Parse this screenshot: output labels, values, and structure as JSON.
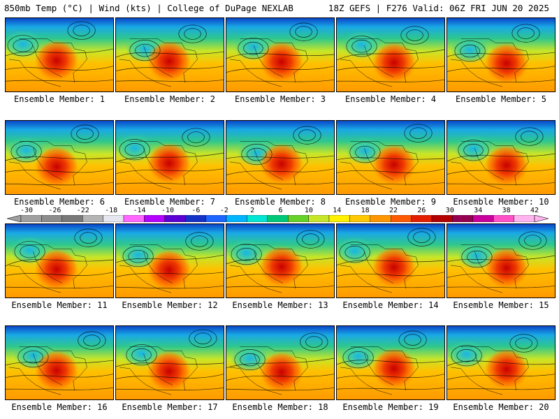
{
  "header": {
    "left": "850mb Temp (°C) | Wind (kts) | College of DuPage NEXLAB",
    "right": "18Z GEFS | F276 Valid: 06Z FRI JUN 20 2025"
  },
  "panel_label_prefix": "Ensemble Member: ",
  "members": [
    "1",
    "2",
    "3",
    "4",
    "5",
    "6",
    "7",
    "8",
    "9",
    "10",
    "11",
    "12",
    "13",
    "14",
    "15",
    "16",
    "17",
    "18",
    "19",
    "20"
  ],
  "colorbar": {
    "ticks": [
      "-30",
      "-26",
      "-22",
      "-18",
      "-14",
      "-10",
      "-6",
      "-2",
      "2",
      "6",
      "10",
      "14",
      "18",
      "22",
      "26",
      "30",
      "34",
      "38",
      "42"
    ],
    "colors": [
      "#a0a0a0",
      "#8c8c8c",
      "#787878",
      "#b4b4b4",
      "#e6e6f0",
      "#ff66ff",
      "#b400ff",
      "#5a00d2",
      "#1432c8",
      "#1e64ff",
      "#00b4ff",
      "#00e6d2",
      "#00c878",
      "#64d228",
      "#c8e628",
      "#fff000",
      "#ffc800",
      "#ff9600",
      "#ff5a00",
      "#e61e00",
      "#b40000",
      "#960050",
      "#c8009b",
      "#ff50c8",
      "#ffb4f0"
    ]
  }
}
